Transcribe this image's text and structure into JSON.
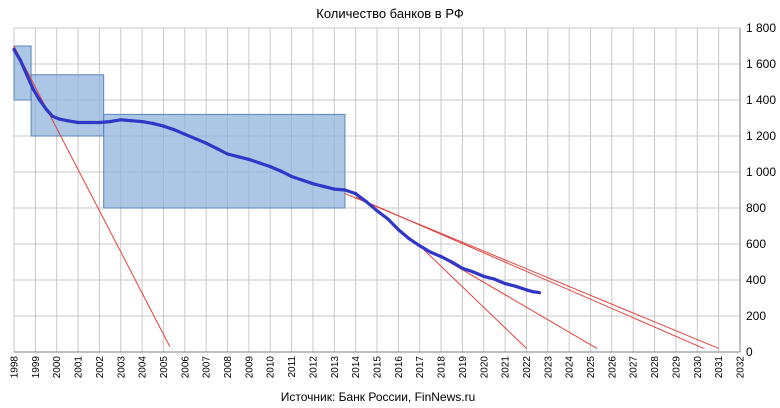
{
  "chart_data": {
    "type": "line",
    "title": "Количество банков в РФ",
    "source": "Источник: Банк России, FinNews.ru",
    "xlim": [
      1998,
      2032
    ],
    "ylim": [
      0,
      1800
    ],
    "x_ticks": [
      "1998",
      "1999",
      "2000",
      "2001",
      "2002",
      "2003",
      "2004",
      "2005",
      "2006",
      "2007",
      "2008",
      "2009",
      "2010",
      "2011",
      "2012",
      "2013",
      "2014",
      "2015",
      "2016",
      "2017",
      "2018",
      "2019",
      "2020",
      "2021",
      "2022",
      "2023",
      "2024",
      "2025",
      "2026",
      "2027",
      "2028",
      "2029",
      "2030",
      "2031",
      "2032"
    ],
    "y_ticks": [
      "0",
      "200",
      "400",
      "600",
      "800",
      "1 000",
      "1 200",
      "1 400",
      "1 600",
      "1 800"
    ],
    "grid": true,
    "colors": {
      "series": "#2f36c8",
      "trend": "#e0413f",
      "box_fill": "#8fb4dc",
      "box_stroke": "#5a86b8",
      "grid": "#c8c8c8",
      "axis": "#7f7f7f"
    },
    "series": [
      {
        "x": [
          1998.0,
          1998.3,
          1998.6,
          1998.9,
          1999.2,
          1999.5,
          1999.8,
          2000.1,
          2000.5,
          2001.0,
          2001.5,
          2002.0,
          2002.5,
          2003.0,
          2003.5,
          2004.0,
          2004.5,
          2005.0,
          2005.5,
          2006.0,
          2006.5,
          2007.0,
          2007.5,
          2008.0,
          2008.5,
          2009.0,
          2009.5,
          2010.0,
          2010.5,
          2011.0,
          2011.5,
          2012.0,
          2012.5,
          2013.0,
          2013.5,
          2014.0,
          2014.5,
          2015.0,
          2015.5,
          2016.0,
          2016.5,
          2017.0,
          2017.5,
          2018.0,
          2018.5,
          2019.0,
          2019.5,
          2020.0,
          2020.5,
          2021.0,
          2021.5,
          2022.0,
          2022.3,
          2022.6
        ],
        "values": [
          1680,
          1620,
          1540,
          1460,
          1400,
          1350,
          1310,
          1295,
          1285,
          1275,
          1275,
          1275,
          1280,
          1290,
          1285,
          1280,
          1270,
          1255,
          1235,
          1210,
          1185,
          1160,
          1130,
          1100,
          1085,
          1070,
          1050,
          1030,
          1005,
          975,
          955,
          935,
          920,
          905,
          900,
          880,
          835,
          785,
          740,
          680,
          630,
          590,
          555,
          530,
          500,
          465,
          445,
          420,
          405,
          380,
          365,
          345,
          335,
          330
        ]
      }
    ],
    "boxes": [
      {
        "x": [
          1998.0,
          1998.8
        ],
        "y": [
          1400,
          1700
        ]
      },
      {
        "x": [
          1998.8,
          2002.2
        ],
        "y": [
          1200,
          1540
        ]
      },
      {
        "x": [
          2002.2,
          2013.5
        ],
        "y": [
          800,
          1320
        ]
      }
    ],
    "trend_lines": [
      {
        "x": [
          1998.0,
          2005.3
        ],
        "y": [
          1700,
          30
        ]
      },
      {
        "x": [
          2013.5,
          2031.0
        ],
        "y": [
          880,
          20
        ]
      },
      {
        "x": [
          2014.0,
          2030.3
        ],
        "y": [
          860,
          20
        ]
      },
      {
        "x": [
          2016.5,
          2025.3
        ],
        "y": [
          630,
          20
        ]
      },
      {
        "x": [
          2017.0,
          2022.0
        ],
        "y": [
          590,
          20
        ]
      }
    ]
  }
}
